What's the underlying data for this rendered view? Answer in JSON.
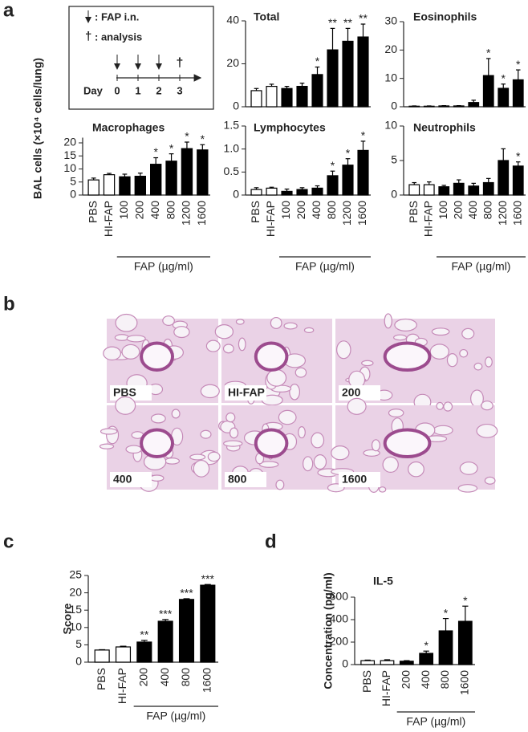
{
  "panel_labels": [
    "a",
    "b",
    "c",
    "d"
  ],
  "shared_ylabel": "BAL cells (×10⁴ cells/lung)",
  "timeline": {
    "injection_label": ": FAP i.n.",
    "symbol": "†",
    "analysis_label": ": analysis",
    "day_label": "Day",
    "days": [
      "0",
      "1",
      "2",
      "3"
    ]
  },
  "histology": {
    "labels": [
      "PBS",
      "HI-FAP",
      "200",
      "400",
      "800",
      "1600"
    ]
  },
  "chart_data": [
    {
      "type": "bar",
      "title": "Total",
      "values": [
        7.5,
        9.5,
        8.5,
        9.5,
        15,
        26.5,
        30.5,
        32.5
      ],
      "errors": [
        1,
        1,
        1,
        1.5,
        3.5,
        10,
        6,
        6
      ],
      "annotations": [
        null,
        null,
        null,
        null,
        "*",
        "**",
        "**",
        "**"
      ],
      "bar_colors": [
        "#ffffff",
        "#ffffff",
        "#000000",
        "#000000",
        "#000000",
        "#000000",
        "#000000",
        "#000000"
      ],
      "ylim": [
        0,
        40
      ],
      "yticks": [
        0,
        20,
        40
      ]
    },
    {
      "type": "bar",
      "title": "Eosinophils",
      "values": [
        0.2,
        0.2,
        0.3,
        0.3,
        1.5,
        11,
        6.5,
        9.5
      ],
      "errors": [
        0.1,
        0.1,
        0.1,
        0.1,
        0.8,
        6,
        1.5,
        3.5
      ],
      "annotations": [
        null,
        null,
        null,
        null,
        null,
        "*",
        "*",
        "*"
      ],
      "bar_colors": [
        "#ffffff",
        "#ffffff",
        "#000000",
        "#000000",
        "#000000",
        "#000000",
        "#000000",
        "#000000"
      ],
      "ylim": [
        0,
        30
      ],
      "yticks": [
        0,
        10,
        20,
        30
      ]
    },
    {
      "type": "bar",
      "title": "Macrophages",
      "categories": [
        "PBS",
        "HI-FAP",
        "100",
        "200",
        "400",
        "800",
        "1200",
        "1600"
      ],
      "xlabel": "FAP (µg/ml)",
      "values": [
        5.8,
        7.8,
        7,
        7.2,
        11.8,
        13,
        17.8,
        17.3
      ],
      "errors": [
        0.7,
        0.5,
        1,
        1.2,
        2.5,
        2.8,
        2.5,
        2
      ],
      "annotations": [
        null,
        null,
        null,
        null,
        "*",
        "*",
        "*",
        "*"
      ],
      "bar_colors": [
        "#ffffff",
        "#ffffff",
        "#000000",
        "#000000",
        "#000000",
        "#000000",
        "#000000",
        "#000000"
      ],
      "ylim": [
        0,
        22
      ],
      "yticks": [
        0,
        5,
        10,
        15,
        20
      ]
    },
    {
      "type": "bar",
      "title": "Lymphocytes",
      "categories": [
        "PBS",
        "HI-FAP",
        "100",
        "200",
        "400",
        "800",
        "1200",
        "1600"
      ],
      "xlabel": "FAP (µg/ml)",
      "values": [
        0.12,
        0.15,
        0.08,
        0.12,
        0.15,
        0.42,
        0.65,
        0.97
      ],
      "errors": [
        0.04,
        0.02,
        0.05,
        0.04,
        0.05,
        0.1,
        0.14,
        0.2
      ],
      "annotations": [
        null,
        null,
        null,
        null,
        null,
        "*",
        "*",
        "*"
      ],
      "bar_colors": [
        "#ffffff",
        "#ffffff",
        "#000000",
        "#000000",
        "#000000",
        "#000000",
        "#000000",
        "#000000"
      ],
      "ylim": [
        0,
        1.5
      ],
      "yticks": [
        0,
        0.5,
        {
          "value": 1,
          "label": "1.0"
        },
        1.5
      ]
    },
    {
      "type": "bar",
      "title": "Neutrophils",
      "categories": [
        "PBS",
        "HI-FAP",
        "100",
        "200",
        "400",
        "800",
        "1200",
        "1600"
      ],
      "xlabel": "FAP (µg/ml)",
      "values": [
        1.5,
        1.5,
        1.2,
        1.7,
        1.3,
        1.8,
        5,
        4.2
      ],
      "errors": [
        0.3,
        0.4,
        0.2,
        0.5,
        0.4,
        0.6,
        1.7,
        0.6
      ],
      "annotations": [
        null,
        null,
        null,
        null,
        null,
        null,
        null,
        "*"
      ],
      "bar_colors": [
        "#ffffff",
        "#ffffff",
        "#000000",
        "#000000",
        "#000000",
        "#000000",
        "#000000",
        "#000000"
      ],
      "ylim": [
        0,
        10
      ],
      "yticks": [
        0,
        5,
        10
      ]
    },
    {
      "type": "bar",
      "ylabel": "Score",
      "categories": [
        "PBS",
        "HI-FAP",
        "200",
        "400",
        "800",
        "1600"
      ],
      "xlabel": "FAP (µg/ml)",
      "values": [
        3.5,
        4.4,
        5.8,
        11.8,
        18.1,
        22.2
      ],
      "errors": [
        0.1,
        0.2,
        0.5,
        0.5,
        0.2,
        0.2
      ],
      "annotations": [
        null,
        null,
        "**",
        "***",
        "***",
        "***"
      ],
      "bar_colors": [
        "#ffffff",
        "#ffffff",
        "#000000",
        "#000000",
        "#000000",
        "#000000"
      ],
      "ylim": [
        0,
        25
      ],
      "yticks": [
        0,
        5,
        10,
        15,
        20,
        25
      ]
    },
    {
      "type": "bar",
      "title": "IL-5",
      "ylabel": "Concentration (pg/ml)",
      "categories": [
        "PBS",
        "HI-FAP",
        "200",
        "400",
        "800",
        "1600"
      ],
      "xlabel": "FAP (µg/ml)",
      "values": [
        35,
        35,
        30,
        100,
        300,
        385
      ],
      "errors": [
        5,
        8,
        5,
        20,
        110,
        135
      ],
      "annotations": [
        null,
        null,
        null,
        "*",
        "*",
        "*"
      ],
      "bar_colors": [
        "#ffffff",
        "#ffffff",
        "#000000",
        "#000000",
        "#000000",
        "#000000"
      ],
      "ylim": [
        0,
        600
      ],
      "yticks": [
        0,
        200,
        400,
        600
      ]
    }
  ]
}
